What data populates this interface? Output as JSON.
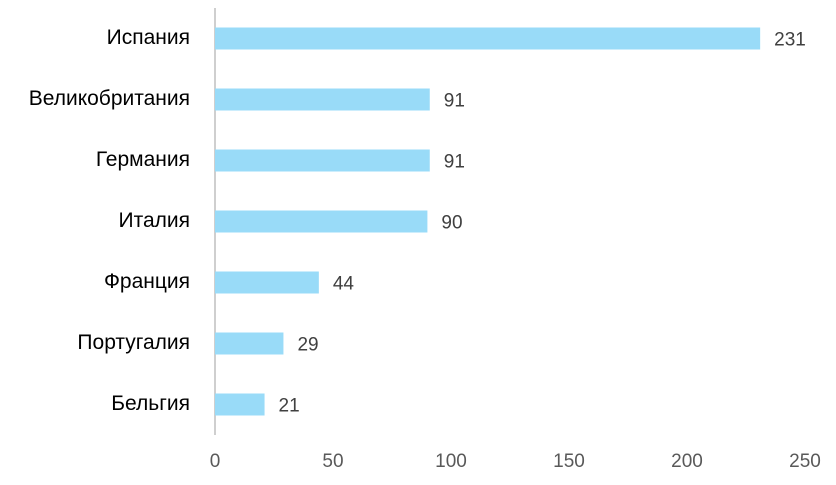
{
  "chart_data": {
    "type": "bar",
    "orientation": "horizontal",
    "categories": [
      "Испания",
      "Великобритания",
      "Германия",
      "Италия",
      "Франция",
      "Португалия",
      "Бельгия"
    ],
    "values": [
      231,
      91,
      91,
      90,
      44,
      29,
      21
    ],
    "color": "#99dbf8",
    "xlim": [
      0,
      250
    ],
    "xticks": [
      0,
      50,
      100,
      150,
      200,
      250
    ],
    "grid": false,
    "data_labels": true
  }
}
